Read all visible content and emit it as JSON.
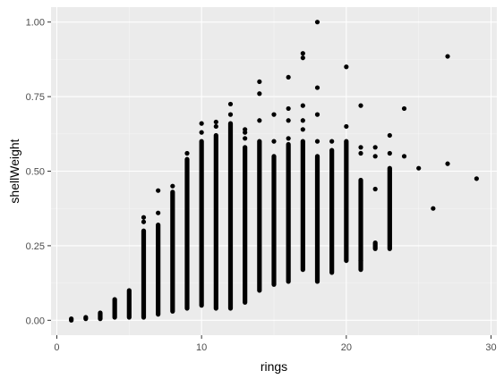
{
  "chart_data": {
    "type": "scatter",
    "title": "",
    "xlabel": "rings",
    "ylabel": "shellWeight",
    "xlim": [
      -0.4,
      30.4
    ],
    "ylim": [
      -0.05,
      1.05
    ],
    "x_ticks": [
      0,
      10,
      20,
      30
    ],
    "x_tick_labels": [
      "0",
      "10",
      "20",
      "30"
    ],
    "y_ticks": [
      0.0,
      0.25,
      0.5,
      0.75,
      1.0
    ],
    "y_tick_labels": [
      "0.00",
      "0.25",
      "0.50",
      "0.75",
      "1.00"
    ],
    "grid": true,
    "legend": "none",
    "colors": {
      "panel": "#ebebeb",
      "grid_major": "#ffffff",
      "grid_minor": "#f5f5f5",
      "point": "#000000"
    },
    "columns": [
      {
        "x": 1,
        "ymin": 0.0,
        "ymax": 0.005,
        "extra": []
      },
      {
        "x": 2,
        "ymin": 0.005,
        "ymax": 0.01,
        "extra": []
      },
      {
        "x": 3,
        "ymin": 0.005,
        "ymax": 0.025,
        "extra": []
      },
      {
        "x": 4,
        "ymin": 0.01,
        "ymax": 0.07,
        "extra": []
      },
      {
        "x": 5,
        "ymin": 0.01,
        "ymax": 0.1,
        "extra": []
      },
      {
        "x": 6,
        "ymin": 0.01,
        "ymax": 0.3,
        "extra": [
          0.33,
          0.345
        ]
      },
      {
        "x": 7,
        "ymin": 0.02,
        "ymax": 0.32,
        "extra": [
          0.36,
          0.435
        ]
      },
      {
        "x": 8,
        "ymin": 0.03,
        "ymax": 0.43,
        "extra": [
          0.45
        ]
      },
      {
        "x": 9,
        "ymin": 0.04,
        "ymax": 0.54,
        "extra": [
          0.56
        ]
      },
      {
        "x": 10,
        "ymin": 0.05,
        "ymax": 0.6,
        "extra": [
          0.63,
          0.66
        ]
      },
      {
        "x": 11,
        "ymin": 0.04,
        "ymax": 0.62,
        "extra": [
          0.65,
          0.665
        ]
      },
      {
        "x": 12,
        "ymin": 0.04,
        "ymax": 0.66,
        "extra": [
          0.69,
          0.725
        ]
      },
      {
        "x": 13,
        "ymin": 0.06,
        "ymax": 0.58,
        "extra": [
          0.61,
          0.63,
          0.64
        ]
      },
      {
        "x": 14,
        "ymin": 0.1,
        "ymax": 0.6,
        "extra": [
          0.67,
          0.76,
          0.8
        ]
      },
      {
        "x": 15,
        "ymin": 0.12,
        "ymax": 0.55,
        "extra": [
          0.6,
          0.69
        ]
      },
      {
        "x": 16,
        "ymin": 0.13,
        "ymax": 0.59,
        "extra": [
          0.61,
          0.67,
          0.71,
          0.815
        ]
      },
      {
        "x": 17,
        "ymin": 0.17,
        "ymax": 0.6,
        "extra": [
          0.64,
          0.67,
          0.72,
          0.88,
          0.895
        ]
      },
      {
        "x": 18,
        "ymin": 0.13,
        "ymax": 0.55,
        "extra": [
          0.6,
          0.69,
          0.78,
          1.0
        ]
      },
      {
        "x": 19,
        "ymin": 0.16,
        "ymax": 0.57,
        "extra": [
          0.6
        ]
      },
      {
        "x": 20,
        "ymin": 0.2,
        "ymax": 0.6,
        "extra": [
          0.65,
          0.85
        ]
      },
      {
        "x": 21,
        "ymin": 0.17,
        "ymax": 0.47,
        "extra": [
          0.2,
          0.56,
          0.58,
          0.72
        ]
      },
      {
        "x": 22,
        "ymin": 0.24,
        "ymax": 0.26,
        "extra": [
          0.44,
          0.55,
          0.58
        ]
      },
      {
        "x": 23,
        "ymin": 0.24,
        "ymax": 0.51,
        "extra": [
          0.56,
          0.62
        ]
      },
      {
        "x": 24,
        "ymin": 0.55,
        "ymax": 0.55,
        "extra": [
          0.71
        ]
      },
      {
        "x": 25,
        "ymin": 0.51,
        "ymax": 0.51,
        "extra": []
      },
      {
        "x": 26,
        "ymin": 0.375,
        "ymax": 0.375,
        "extra": []
      },
      {
        "x": 27,
        "ymin": 0.525,
        "ymax": 0.525,
        "extra": [
          0.885
        ]
      },
      {
        "x": 29,
        "ymin": 0.475,
        "ymax": 0.475,
        "extra": []
      }
    ]
  }
}
